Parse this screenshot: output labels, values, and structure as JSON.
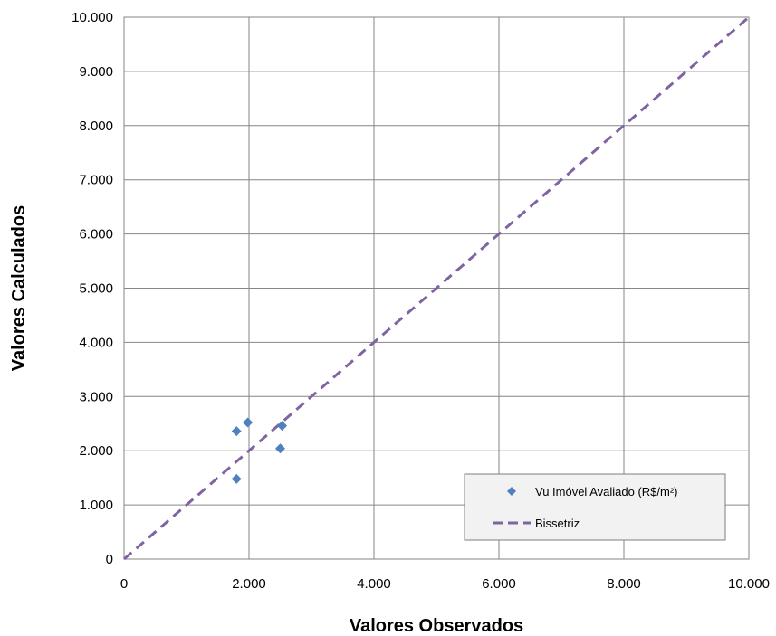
{
  "chart_data": {
    "type": "scatter",
    "xlabel": "Valores Observados",
    "ylabel": "Valores Calculados",
    "xlim": [
      0,
      10000
    ],
    "ylim": [
      0,
      10000
    ],
    "x_ticks": [
      0,
      2000,
      4000,
      6000,
      8000,
      10000
    ],
    "y_ticks": [
      0,
      1000,
      2000,
      3000,
      4000,
      5000,
      6000,
      7000,
      8000,
      9000,
      10000
    ],
    "x_tick_labels": [
      "0",
      "2.000",
      "4.000",
      "6.000",
      "8.000",
      "10.000"
    ],
    "y_tick_labels": [
      "0",
      "1.000",
      "2.000",
      "3.000",
      "4.000",
      "5.000",
      "6.000",
      "7.000",
      "8.000",
      "9.000",
      "10.000"
    ],
    "grid": true,
    "legend_position": "bottom-right",
    "series": [
      {
        "name": "Vu Imóvel Avaliado (R$/m²)",
        "marker": "diamond",
        "color": "#4F81BD",
        "x": [
          1800,
          1800,
          1980,
          2500,
          2530
        ],
        "y": [
          1480,
          2360,
          2520,
          2040,
          2460
        ]
      },
      {
        "name": "Bissetriz",
        "style": "dashed-line",
        "color": "#8064A2",
        "x": [
          0,
          10000
        ],
        "y": [
          0,
          10000
        ]
      }
    ]
  }
}
